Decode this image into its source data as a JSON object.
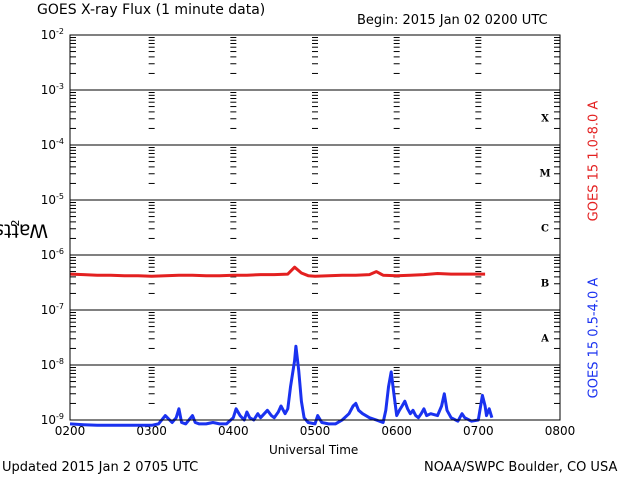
{
  "header": {
    "title": "GOES X-ray Flux (1 minute data)",
    "begin": "Begin: 2015 Jan 02 0200 UTC"
  },
  "footer": {
    "updated": "Updated 2015 Jan  2 0705 UTC",
    "credit": "NOAA/SWPC Boulder, CO USA"
  },
  "chart_data": {
    "type": "line",
    "title": "GOES X-ray Flux (1 minute data)",
    "xlabel": "Universal Time",
    "ylabel": "Watts m-2",
    "ylabel_base": "Watts m",
    "ylabel_exp": "-2",
    "y_scale": "log",
    "xlim": [
      200,
      800
    ],
    "ylim": [
      1e-09,
      0.01
    ],
    "x_ticks": [
      "0200",
      "0300",
      "0400",
      "0500",
      "0600",
      "0700",
      "0800"
    ],
    "y_ticks": [
      {
        "base": "10",
        "exp": "-9"
      },
      {
        "base": "10",
        "exp": "-8"
      },
      {
        "base": "10",
        "exp": "-7"
      },
      {
        "base": "10",
        "exp": "-6"
      },
      {
        "base": "10",
        "exp": "-5"
      },
      {
        "base": "10",
        "exp": "-4"
      },
      {
        "base": "10",
        "exp": "-3"
      },
      {
        "base": "10",
        "exp": "-2"
      }
    ],
    "flare_classes": [
      "A",
      "B",
      "C",
      "M",
      "X"
    ],
    "grid": true,
    "colors": {
      "long": "#e32020",
      "short": "#1a32f0"
    },
    "series": [
      {
        "name": "GOES 15 1.0-8.0 A",
        "color": "#e32020",
        "x": [
          "02:00",
          "02:10",
          "02:20",
          "02:30",
          "02:40",
          "02:50",
          "03:00",
          "03:10",
          "03:20",
          "03:30",
          "03:40",
          "03:50",
          "04:00",
          "04:10",
          "04:20",
          "04:30",
          "04:40",
          "04:45",
          "04:50",
          "04:55",
          "05:00",
          "05:10",
          "05:20",
          "05:30",
          "05:40",
          "05:45",
          "05:50",
          "06:00",
          "06:10",
          "06:20",
          "06:30",
          "06:40",
          "06:50",
          "07:00",
          "07:05"
        ],
        "y": [
          4.5e-07,
          4.4e-07,
          4.3e-07,
          4.3e-07,
          4.2e-07,
          4.2e-07,
          4.1e-07,
          4.2e-07,
          4.3e-07,
          4.3e-07,
          4.2e-07,
          4.2e-07,
          4.3e-07,
          4.3e-07,
          4.4e-07,
          4.4e-07,
          4.5e-07,
          6e-07,
          4.7e-07,
          4.2e-07,
          4.1e-07,
          4.2e-07,
          4.3e-07,
          4.3e-07,
          4.4e-07,
          5e-07,
          4.3e-07,
          4.2e-07,
          4.3e-07,
          4.4e-07,
          4.6e-07,
          4.5e-07,
          4.5e-07,
          4.5e-07,
          4.5e-07
        ]
      },
      {
        "name": "GOES 15 0.5-4.0 A",
        "color": "#1a32f0",
        "x": [
          "02:00",
          "02:10",
          "02:20",
          "02:30",
          "02:40",
          "02:50",
          "03:00",
          "03:05",
          "03:10",
          "03:15",
          "03:18",
          "03:20",
          "03:22",
          "03:25",
          "03:30",
          "03:32",
          "03:35",
          "03:40",
          "03:45",
          "03:50",
          "03:55",
          "04:00",
          "04:02",
          "04:05",
          "04:08",
          "04:10",
          "04:12",
          "04:15",
          "04:18",
          "04:20",
          "04:25",
          "04:28",
          "04:30",
          "04:33",
          "04:35",
          "04:38",
          "04:40",
          "04:42",
          "04:45",
          "04:46",
          "04:48",
          "04:50",
          "04:52",
          "04:55",
          "05:00",
          "05:02",
          "05:05",
          "05:10",
          "05:15",
          "05:20",
          "05:25",
          "05:28",
          "05:30",
          "05:32",
          "05:35",
          "05:40",
          "05:45",
          "05:50",
          "05:52",
          "05:54",
          "05:56",
          "05:58",
          "06:00",
          "06:02",
          "06:04",
          "06:06",
          "06:08",
          "06:10",
          "06:12",
          "06:14",
          "06:16",
          "06:18",
          "06:20",
          "06:22",
          "06:25",
          "06:30",
          "06:33",
          "06:35",
          "06:37",
          "06:40",
          "06:45",
          "06:48",
          "06:50",
          "06:55",
          "07:00",
          "07:03",
          "07:05",
          "07:06",
          "07:08",
          "07:10"
        ],
        "y": [
          8.5e-10,
          8.2e-10,
          8e-10,
          8e-10,
          8e-10,
          8e-10,
          8e-10,
          8.5e-10,
          1.2e-09,
          9e-10,
          1.1e-09,
          1.6e-09,
          9e-10,
          8.5e-10,
          1.2e-09,
          9e-10,
          8.5e-10,
          8.5e-10,
          9e-10,
          8.5e-10,
          8.5e-10,
          1.1e-09,
          1.6e-09,
          1.2e-09,
          1e-09,
          1.4e-09,
          1.1e-09,
          1e-09,
          1.3e-09,
          1.1e-09,
          1.5e-09,
          1.2e-09,
          1.1e-09,
          1.4e-09,
          1.8e-09,
          1.3e-09,
          1.6e-09,
          4e-09,
          1.2e-08,
          2.2e-08,
          8e-09,
          2.2e-09,
          1.1e-09,
          9e-10,
          8.5e-10,
          1.2e-09,
          9e-10,
          8.5e-10,
          8.5e-10,
          1e-09,
          1.3e-09,
          1.8e-09,
          2e-09,
          1.5e-09,
          1.3e-09,
          1.1e-09,
          1e-09,
          9e-10,
          1.5e-09,
          4e-09,
          7.5e-09,
          3e-09,
          1.2e-09,
          1.5e-09,
          1.8e-09,
          2.2e-09,
          1.6e-09,
          1.3e-09,
          1.5e-09,
          1.2e-09,
          1.1e-09,
          1.3e-09,
          1.6e-09,
          1.2e-09,
          1.3e-09,
          1.2e-09,
          1.8e-09,
          3e-09,
          1.5e-09,
          1.1e-09,
          9.5e-10,
          1.3e-09,
          1.1e-09,
          9.5e-10,
          1e-09,
          2.8e-09,
          1.8e-09,
          1.2e-09,
          1.6e-09,
          1.1e-09
        ]
      }
    ]
  }
}
